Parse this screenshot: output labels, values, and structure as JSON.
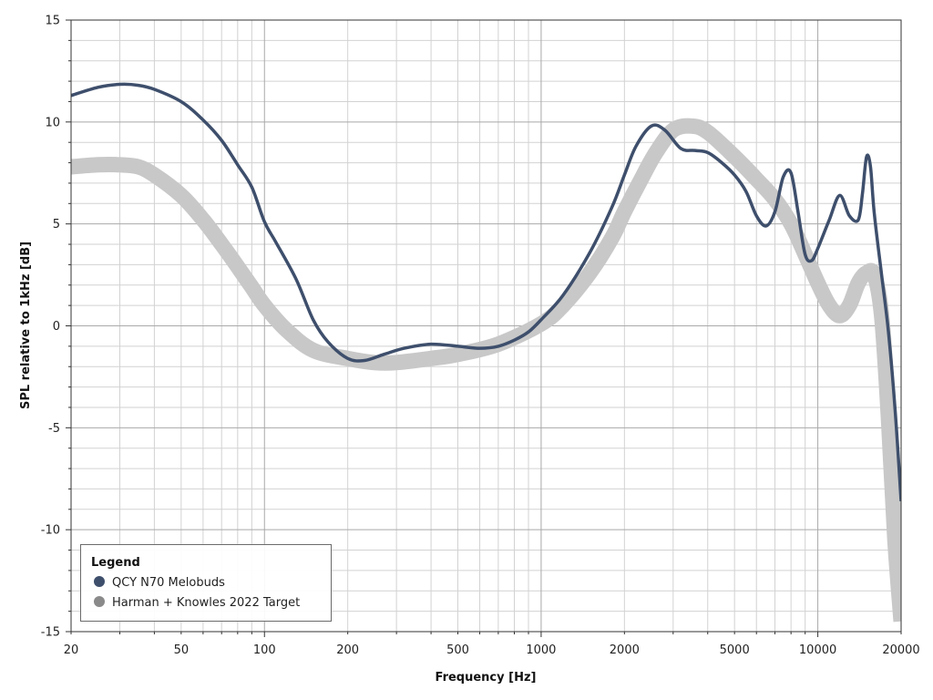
{
  "chart_data": {
    "type": "line",
    "title": "",
    "xlabel": "Frequency [Hz]",
    "ylabel": "SPL relative to 1kHz [dB]",
    "x_scale": "log",
    "xlim": [
      20,
      20000
    ],
    "ylim": [
      -15,
      15
    ],
    "x_ticks": [
      "20",
      "50",
      "100",
      "200",
      "500",
      "1000",
      "2000",
      "5000",
      "10000",
      "20000"
    ],
    "x_tick_values": [
      20,
      50,
      100,
      200,
      500,
      1000,
      2000,
      5000,
      10000,
      20000
    ],
    "y_ticks": [
      "15",
      "10",
      "5",
      "0",
      "-5",
      "-10",
      "-15"
    ],
    "y_tick_values": [
      15,
      10,
      5,
      0,
      -5,
      -10,
      -15
    ],
    "grid": true,
    "legend": {
      "title": "Legend",
      "position": "bottom-left",
      "items": [
        "QCY N70 Melobuds",
        "Harman + Knowles 2022 Target"
      ]
    },
    "series": [
      {
        "name": "QCY N70 Melobuds",
        "color": "#3e4f6c",
        "x": [
          20,
          25,
          30,
          35,
          40,
          50,
          60,
          70,
          80,
          90,
          100,
          110,
          130,
          150,
          170,
          200,
          230,
          270,
          320,
          400,
          500,
          600,
          700,
          800,
          900,
          1000,
          1200,
          1500,
          1800,
          2000,
          2200,
          2500,
          2800,
          3200,
          3600,
          4000,
          4500,
          5000,
          5500,
          6000,
          6500,
          7000,
          7500,
          8000,
          8500,
          9000,
          9500,
          10000,
          11000,
          12000,
          13000,
          14000,
          14500,
          15000,
          15500,
          16000,
          17000,
          18000,
          19000,
          20000
        ],
        "y": [
          11.3,
          11.7,
          11.85,
          11.8,
          11.6,
          11.0,
          10.1,
          9.1,
          7.9,
          6.8,
          5.1,
          4.1,
          2.3,
          0.3,
          -0.8,
          -1.6,
          -1.7,
          -1.4,
          -1.1,
          -0.9,
          -1.0,
          -1.1,
          -1.0,
          -0.7,
          -0.3,
          0.3,
          1.5,
          3.6,
          5.8,
          7.4,
          8.8,
          9.8,
          9.6,
          8.7,
          8.6,
          8.5,
          8.0,
          7.4,
          6.6,
          5.4,
          4.9,
          5.6,
          7.3,
          7.5,
          5.5,
          3.5,
          3.2,
          3.8,
          5.2,
          6.4,
          5.4,
          5.2,
          6.5,
          8.3,
          7.8,
          5.5,
          2.5,
          -0.3,
          -4.0,
          -8.6
        ]
      },
      {
        "name": "Harman + Knowles 2022 Target",
        "color": "#c8c8c8",
        "x": [
          20,
          25,
          30,
          35,
          40,
          50,
          60,
          70,
          80,
          90,
          100,
          120,
          150,
          200,
          250,
          300,
          400,
          500,
          700,
          1000,
          1200,
          1500,
          1800,
          2000,
          2300,
          2600,
          3000,
          3500,
          4000,
          5000,
          6000,
          7000,
          8000,
          9000,
          10000,
          11000,
          12000,
          13000,
          14000,
          15000,
          16000,
          17000,
          18000,
          19000,
          20000
        ],
        "y": [
          7.8,
          7.9,
          7.9,
          7.8,
          7.4,
          6.4,
          5.2,
          4.0,
          2.9,
          1.9,
          1.0,
          -0.2,
          -1.2,
          -1.6,
          -1.8,
          -1.8,
          -1.6,
          -1.4,
          -0.9,
          0.1,
          1.0,
          2.6,
          4.3,
          5.6,
          7.2,
          8.5,
          9.6,
          9.8,
          9.5,
          8.3,
          7.2,
          6.2,
          5.0,
          3.5,
          2.1,
          1.0,
          0.5,
          1.0,
          2.1,
          2.6,
          2.5,
          0.5,
          -4.5,
          -10.5,
          -14.5
        ]
      }
    ]
  }
}
